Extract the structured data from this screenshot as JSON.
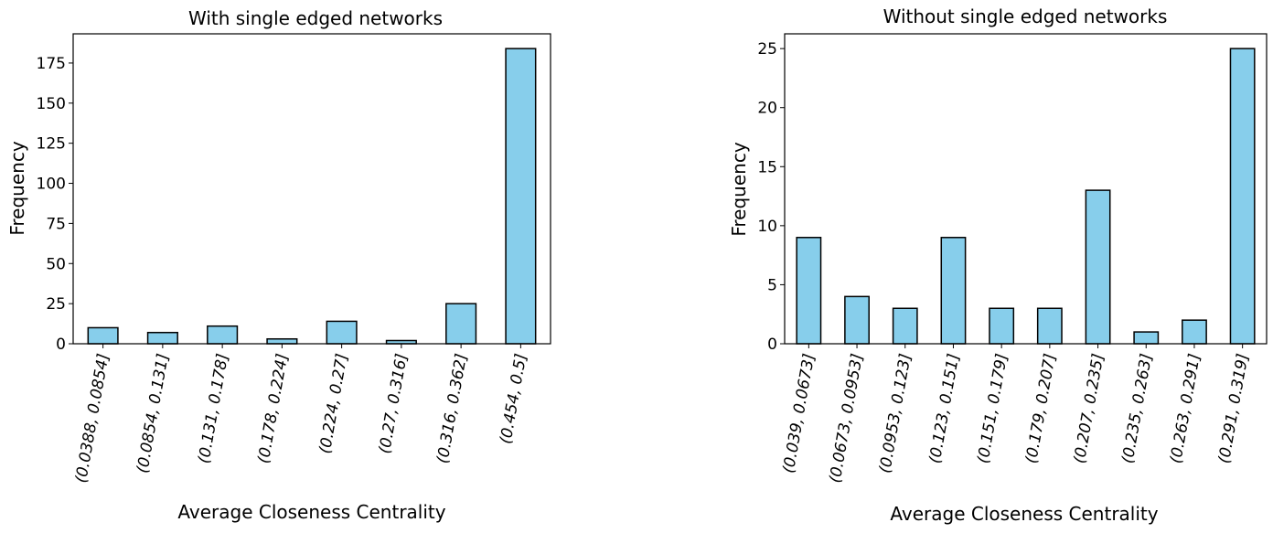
{
  "style": {
    "bar_color": "#87CEEB",
    "bar_edge": "#000000",
    "axis_color": "#000000"
  },
  "chart_data": [
    {
      "type": "bar",
      "title": "With single edged networks",
      "xlabel": "Average Closeness Centrality",
      "ylabel": "Frequency",
      "categories": [
        "(0.0388, 0.0854]",
        "(0.0854, 0.131]",
        "(0.131, 0.178]",
        "(0.178, 0.224]",
        "(0.224, 0.27]",
        "(0.27, 0.316]",
        "(0.316, 0.362]",
        "(0.454, 0.5]"
      ],
      "values": [
        10,
        7,
        11,
        3,
        14,
        2,
        25,
        184
      ],
      "ylim": [
        0,
        193.2
      ],
      "yticks": [
        0,
        25,
        50,
        75,
        100,
        125,
        150,
        175
      ],
      "grid": false,
      "legend": "none"
    },
    {
      "type": "bar",
      "title": "Without single edged networks",
      "xlabel": "Average Closeness Centrality",
      "ylabel": "Frequency",
      "categories": [
        "(0.039, 0.0673]",
        "(0.0673, 0.0953]",
        "(0.0953, 0.123]",
        "(0.123, 0.151]",
        "(0.151, 0.179]",
        "(0.179, 0.207]",
        "(0.207, 0.235]",
        "(0.235, 0.263]",
        "(0.263, 0.291]",
        "(0.291, 0.319]"
      ],
      "values": [
        9,
        4,
        3,
        9,
        3,
        3,
        13,
        1,
        2,
        25
      ],
      "ylim": [
        0,
        26.25
      ],
      "yticks": [
        0,
        5,
        10,
        15,
        20,
        25
      ],
      "grid": false,
      "legend": "none"
    }
  ]
}
